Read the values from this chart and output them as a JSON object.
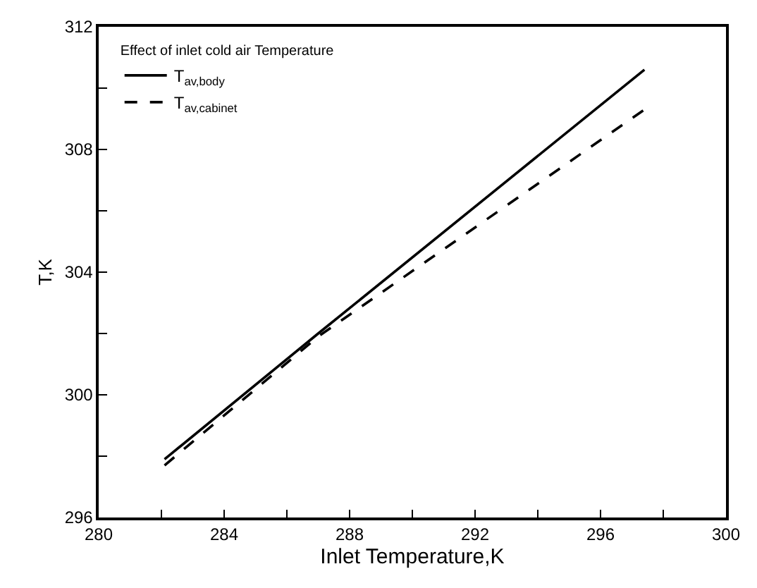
{
  "chart_data": {
    "type": "line",
    "xlabel": "Inlet Temperature,K",
    "ylabel": "T,K",
    "legend_title": "Effect of inlet cold air Temperature",
    "legend": "top left",
    "marker": "none",
    "xlim": [
      280,
      300
    ],
    "ylim": [
      296,
      312
    ],
    "xticks": [
      280,
      {
        "value": 282,
        "label": null
      },
      284,
      {
        "value": 286,
        "label": null
      },
      288,
      {
        "value": 290,
        "label": null
      },
      292,
      {
        "value": 294,
        "label": null
      },
      296,
      {
        "value": 298,
        "label": null
      },
      300
    ],
    "yticks": [
      296,
      {
        "value": 298,
        "label": null
      },
      300,
      {
        "value": 302,
        "label": null
      },
      304,
      {
        "value": 306,
        "label": null
      },
      308,
      {
        "value": 310,
        "label": null
      },
      312
    ],
    "series": [
      {
        "name": "T$_{av,body}$",
        "color": "#000000",
        "line_style": "solid",
        "x": [
          282.1,
          287,
          297.4
        ],
        "values": [
          297.9,
          302.0,
          310.6
        ]
      },
      {
        "name": "T$_{av,cabinet}$",
        "color": "#000000",
        "line_style": "dashed",
        "x": [
          282.1,
          287,
          297.4
        ],
        "values": [
          297.7,
          301.9,
          309.3
        ]
      }
    ]
  }
}
